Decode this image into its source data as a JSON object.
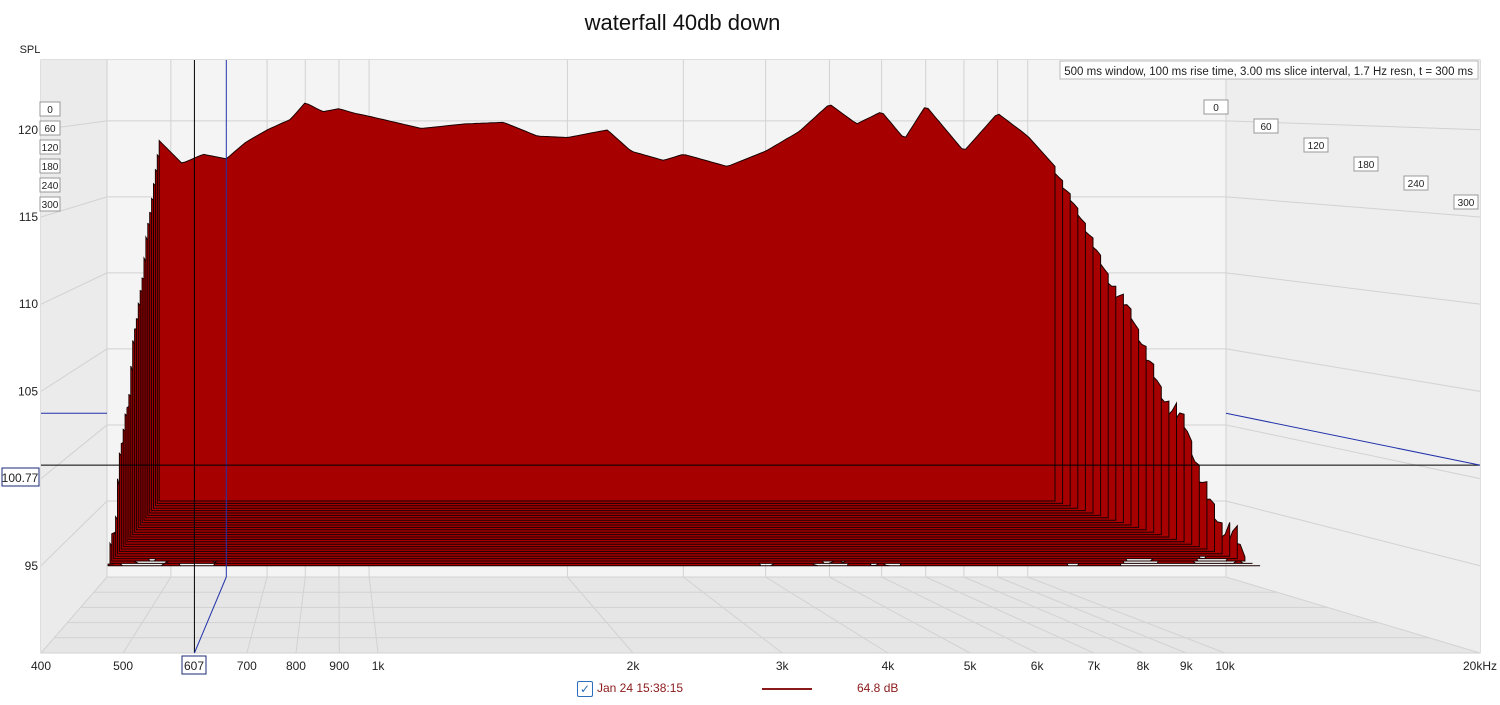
{
  "title": "waterfall 40db down",
  "info": "500 ms window, 100 ms rise time, 3.00 ms slice interval, 1.7 Hz resn, t = 300 ms",
  "cursor": {
    "freq_label": "607",
    "spl_label": "100.77",
    "freq": 607,
    "spl": 100.77
  },
  "legend": {
    "checked": true,
    "check_glyph": "✓",
    "name": "Jan 24 15:38:15",
    "value": "64.8 dB",
    "color": "#8b1a1a"
  },
  "colors": {
    "fill": "#a60000",
    "outline": "#1a0000",
    "grid": "#d2d2d2",
    "cursor_blue": "#2233aa"
  },
  "chart_data": {
    "type": "waterfall",
    "title": "waterfall 40db down",
    "ylabel": "SPL",
    "x_scale": "log",
    "xlim": [
      400,
      20000
    ],
    "ylim": [
      90,
      124
    ],
    "x_tick_labels": [
      {
        "v": 400,
        "t": "400"
      },
      {
        "v": 500,
        "t": "500"
      },
      {
        "v": 700,
        "t": "700"
      },
      {
        "v": 800,
        "t": "800"
      },
      {
        "v": 900,
        "t": "900"
      },
      {
        "v": 1000,
        "t": "1k"
      },
      {
        "v": 2000,
        "t": "2k"
      },
      {
        "v": 3000,
        "t": "3k"
      },
      {
        "v": 4000,
        "t": "4k"
      },
      {
        "v": 5000,
        "t": "5k"
      },
      {
        "v": 6000,
        "t": "6k"
      },
      {
        "v": 7000,
        "t": "7k"
      },
      {
        "v": 8000,
        "t": "8k"
      },
      {
        "v": 9000,
        "t": "9k"
      },
      {
        "v": 10000,
        "t": "10k"
      },
      {
        "v": 20000,
        "t": "20kHz"
      }
    ],
    "y_ticks": [
      95,
      100,
      105,
      110,
      115,
      120
    ],
    "time_labels_ms": [
      0,
      60,
      120,
      180,
      240,
      300
    ],
    "freq_range": [
      480,
      11000
    ],
    "floor_spl": 95,
    "time_ms": [
      0,
      300
    ],
    "slice_count": 28,
    "initial_response": [
      [
        480,
        118.7
      ],
      [
        520,
        117.2
      ],
      [
        560,
        117.8
      ],
      [
        607,
        117.5
      ],
      [
        650,
        118.6
      ],
      [
        700,
        119.4
      ],
      [
        760,
        120.1
      ],
      [
        800,
        121.2
      ],
      [
        850,
        120.6
      ],
      [
        900,
        120.8
      ],
      [
        950,
        120.5
      ],
      [
        1000,
        120.3
      ],
      [
        1200,
        119.5
      ],
      [
        1400,
        119.8
      ],
      [
        1600,
        119.9
      ],
      [
        1800,
        119.0
      ],
      [
        2000,
        118.9
      ],
      [
        2300,
        119.4
      ],
      [
        2500,
        118.0
      ],
      [
        2800,
        117.4
      ],
      [
        3000,
        117.8
      ],
      [
        3500,
        117.0
      ],
      [
        4000,
        118.0
      ],
      [
        4500,
        119.3
      ],
      [
        5000,
        121.1
      ],
      [
        5500,
        119.8
      ],
      [
        6000,
        120.6
      ],
      [
        6500,
        118.8
      ],
      [
        7000,
        121.0
      ],
      [
        8000,
        118.0
      ],
      [
        9000,
        120.5
      ],
      [
        10000,
        119.0
      ],
      [
        11000,
        117.0
      ]
    ],
    "decay_db_at_300ms": [
      [
        480,
        24
      ],
      [
        600,
        23
      ],
      [
        800,
        23
      ],
      [
        1000,
        22
      ],
      [
        2000,
        22
      ],
      [
        3000,
        22
      ],
      [
        5000,
        23
      ],
      [
        7000,
        24
      ],
      [
        8000,
        25
      ],
      [
        9000,
        26
      ],
      [
        10000,
        26
      ],
      [
        11000,
        24
      ]
    ]
  }
}
